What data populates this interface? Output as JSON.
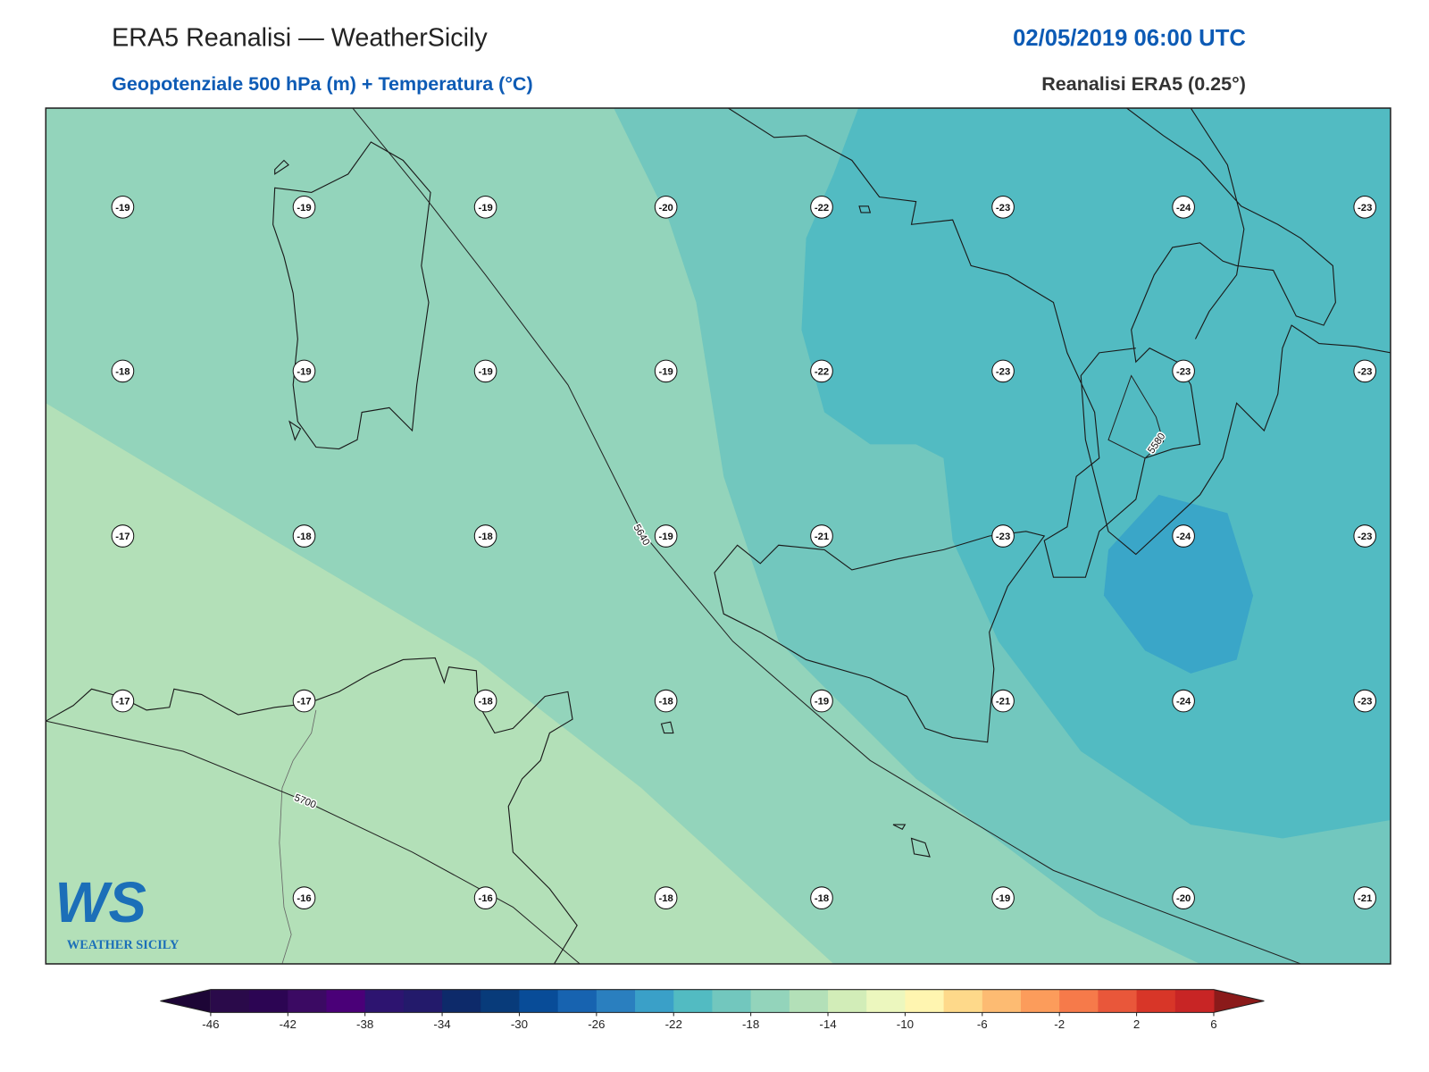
{
  "header": {
    "title": "ERA5 Reanalisi — WeatherSicily",
    "datetime": "02/05/2019 06:00 UTC",
    "subtitle": "Geopotenziale 500 hPa (m) + Temperatura (°C)",
    "source": "Reanalisi ERA5 (0.25°)"
  },
  "stations": {
    "rows": [
      [
        -19,
        -19,
        -19,
        -20,
        -22,
        -23,
        -24,
        -23
      ],
      [
        -18,
        -19,
        -19,
        -19,
        -22,
        -23,
        -23,
        -23
      ],
      [
        -17,
        -18,
        -18,
        -19,
        -21,
        -23,
        -24,
        -23
      ],
      [
        -17,
        -17,
        -18,
        -18,
        -19,
        -21,
        -24,
        -23
      ],
      [
        null,
        -16,
        -16,
        -18,
        -18,
        -19,
        -20,
        -21
      ]
    ]
  },
  "contour_levels": [
    5580,
    5640,
    5700
  ],
  "colorbar": {
    "range": [
      -46,
      6
    ],
    "ticks": [
      -46,
      -42,
      -38,
      -34,
      -30,
      -26,
      -22,
      -18,
      -14,
      -10,
      -6,
      -2,
      2,
      6
    ],
    "colors": [
      "#2a0a4a",
      "#2c0553",
      "#3b0a63",
      "#4a0078",
      "#2d1470",
      "#231a6b",
      "#0d2a6a",
      "#083b7a",
      "#084c98",
      "#1763b0",
      "#2a7fbf",
      "#3aa0c8",
      "#52bbc2",
      "#72c7be",
      "#93d4bb",
      "#b3e0b8",
      "#d2edb8",
      "#ecf7be",
      "#fff5b0",
      "#fed98a",
      "#fdbb72",
      "#fc9c5b",
      "#f67a4a",
      "#e9573a",
      "#d83628",
      "#c82525"
    ],
    "extend_colors": [
      "#1d0536",
      "#8b1a1a"
    ]
  },
  "logo": {
    "mark": "WS",
    "text": "WEATHER SICILY"
  }
}
